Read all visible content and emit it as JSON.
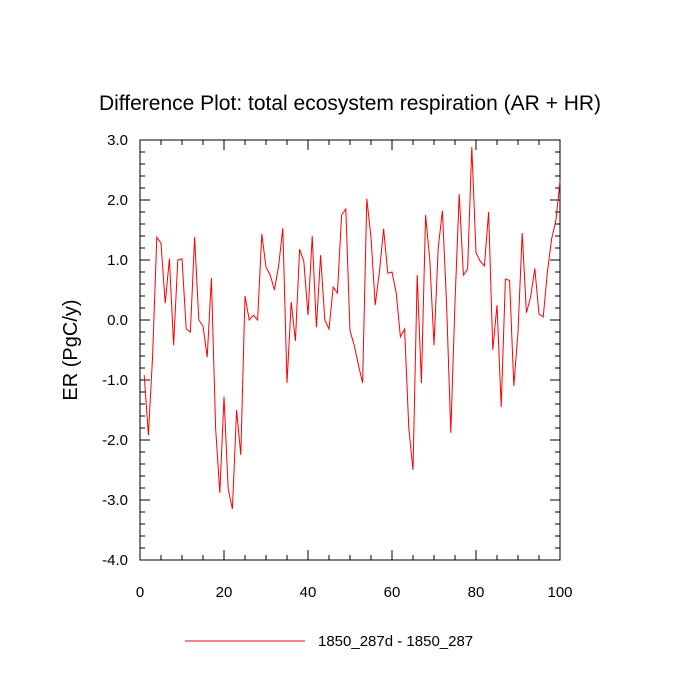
{
  "chart_data": {
    "type": "line",
    "title": "Difference Plot: total ecosystem respiration (AR + HR)",
    "xlabel": "",
    "ylabel": "ER  (PgC/y)",
    "xlim": [
      0,
      100
    ],
    "ylim": [
      -4.0,
      3.0
    ],
    "xticks": [
      0,
      20,
      40,
      60,
      80,
      100
    ],
    "xtick_labels": [
      "0",
      "20",
      "40",
      "60",
      "80",
      "100"
    ],
    "yticks": [
      -4.0,
      -3.0,
      -2.0,
      -1.0,
      0.0,
      1.0,
      2.0,
      3.0
    ],
    "ytick_labels": [
      "-4.0",
      "-3.0",
      "-2.0",
      "-1.0",
      "0.0",
      "1.0",
      "2.0",
      "3.0"
    ],
    "legend_position": "bottom-center",
    "series": [
      {
        "name": "1850_287d - 1850_287",
        "color": "#ff0000",
        "x": [
          1,
          2,
          3,
          4,
          5,
          6,
          7,
          8,
          9,
          10,
          11,
          12,
          13,
          14,
          15,
          16,
          17,
          18,
          19,
          20,
          21,
          22,
          23,
          24,
          25,
          26,
          27,
          28,
          29,
          30,
          31,
          32,
          33,
          34,
          35,
          36,
          37,
          38,
          39,
          40,
          41,
          42,
          43,
          44,
          45,
          46,
          47,
          48,
          49,
          50,
          51,
          52,
          53,
          54,
          55,
          56,
          57,
          58,
          59,
          60,
          61,
          62,
          63,
          64,
          65,
          66,
          67,
          68,
          69,
          70,
          71,
          72,
          73,
          74,
          75,
          76,
          77,
          78,
          79,
          80,
          81,
          82,
          83,
          84,
          85,
          86,
          87,
          88,
          89,
          90,
          91,
          92,
          93,
          94,
          95,
          96,
          97,
          98,
          99,
          100
        ],
        "values": [
          -0.92,
          -1.92,
          -0.6,
          1.38,
          1.28,
          0.28,
          1.02,
          -0.42,
          1.0,
          1.02,
          -0.15,
          -0.2,
          1.38,
          0.0,
          -0.1,
          -0.62,
          0.7,
          -1.8,
          -2.88,
          -1.28,
          -2.82,
          -3.15,
          -1.5,
          -2.25,
          0.4,
          0.0,
          0.08,
          0.0,
          1.43,
          0.88,
          0.75,
          0.5,
          0.9,
          1.53,
          -1.05,
          0.3,
          -0.35,
          1.18,
          0.98,
          0.08,
          1.4,
          -0.12,
          1.08,
          0.0,
          -0.15,
          0.55,
          0.45,
          1.75,
          1.85,
          -0.18,
          -0.42,
          -0.75,
          -1.05,
          2.02,
          1.38,
          0.25,
          0.8,
          1.52,
          0.78,
          0.8,
          0.45,
          -0.28,
          -0.15,
          -1.8,
          -2.5,
          0.75,
          -1.05,
          1.75,
          1.0,
          -0.42,
          1.2,
          1.82,
          0.25,
          -1.88,
          0.3,
          2.1,
          0.75,
          0.85,
          2.88,
          1.12,
          0.98,
          0.9,
          1.8,
          -0.5,
          0.25,
          -1.45,
          0.68,
          0.66,
          -1.1,
          -0.2,
          1.45,
          0.12,
          0.38,
          0.86,
          0.1,
          0.05,
          0.8,
          1.35,
          1.65,
          2.32
        ]
      }
    ]
  }
}
